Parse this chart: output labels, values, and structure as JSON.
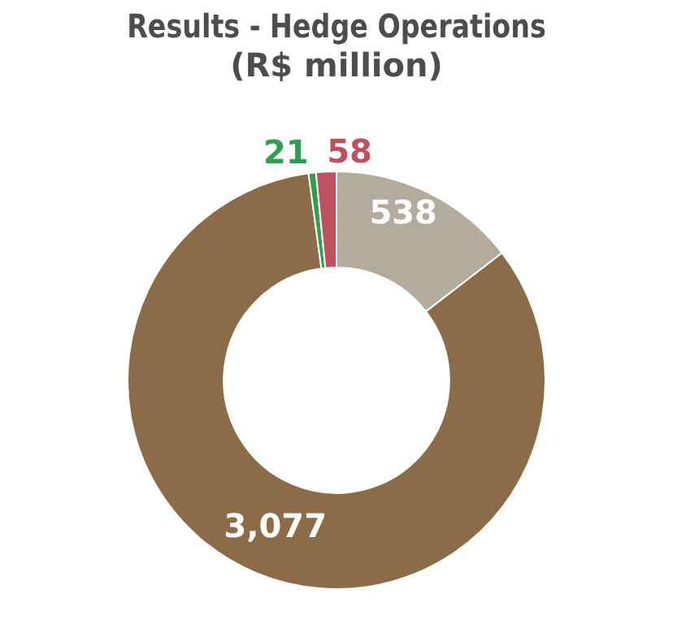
{
  "chart_data": {
    "type": "donut",
    "title": "Results - Hedge Operations\n(R$ million)",
    "categories": [
      null,
      null,
      null,
      null
    ],
    "values": [
      538,
      3077,
      21,
      58
    ],
    "value_labels": [
      "538",
      "3,077",
      "21",
      "58"
    ],
    "colors": [
      "#b3ab9c",
      "#8c6c48",
      "#2e9e4f",
      "#c0505f"
    ],
    "legend": false
  }
}
